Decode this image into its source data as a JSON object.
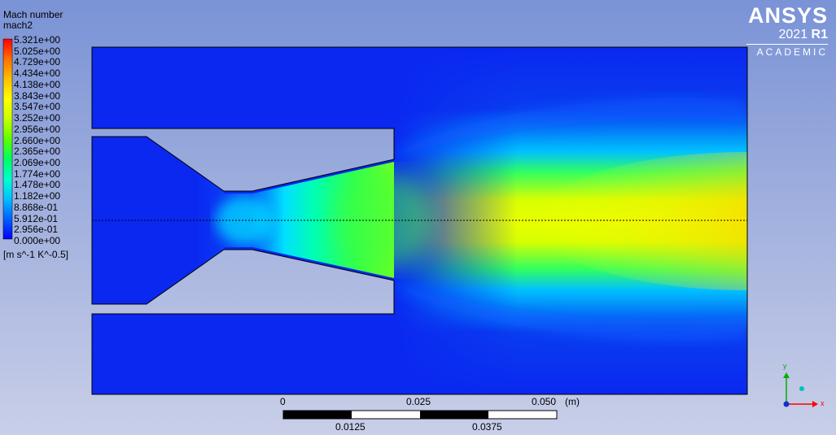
{
  "legend": {
    "title": "Mach number",
    "variable": "mach2",
    "unit": "[m s^-1 K^-0.5]",
    "max": 5.321,
    "ticks": [
      "5.321e+00",
      "5.025e+00",
      "4.729e+00",
      "4.434e+00",
      "4.138e+00",
      "3.843e+00",
      "3.547e+00",
      "3.252e+00",
      "2.956e+00",
      "2.660e+00",
      "2.365e+00",
      "2.069e+00",
      "1.774e+00",
      "1.478e+00",
      "1.182e+00",
      "8.868e-01",
      "5.912e-01",
      "2.956e-01",
      "0.000e+00"
    ],
    "colormap": [
      "#0000ff",
      "#0060ff",
      "#00c0ff",
      "#00ffd0",
      "#00ff60",
      "#60ff00",
      "#c8ff00",
      "#ffff00",
      "#ffc000",
      "#ff7000",
      "#ff0000"
    ]
  },
  "brand": {
    "name": "ANSYS",
    "year": "2021",
    "release": "R1",
    "edition": "ACADEMIC"
  },
  "scale": {
    "top_labels": [
      "0",
      "0.025",
      "0.050"
    ],
    "unit": "(m)",
    "bottom_labels": [
      "0.0125",
      "0.0375"
    ]
  },
  "axes": {
    "x": "x",
    "y": "y"
  },
  "colors": {
    "solid": "#9fb0e0",
    "background_top": "#7a93d6",
    "background_bottom": "#c9cfe8",
    "inlet_blue": "#0a28f0",
    "throat_cyan": "#00d8ff",
    "exit_green": "#20ff70",
    "core_yellow": "#d0ff00",
    "hot_red": "#ff2000",
    "axis_x": "#ff0000",
    "axis_y": "#00b000",
    "axis_z": "#00a0a0"
  }
}
